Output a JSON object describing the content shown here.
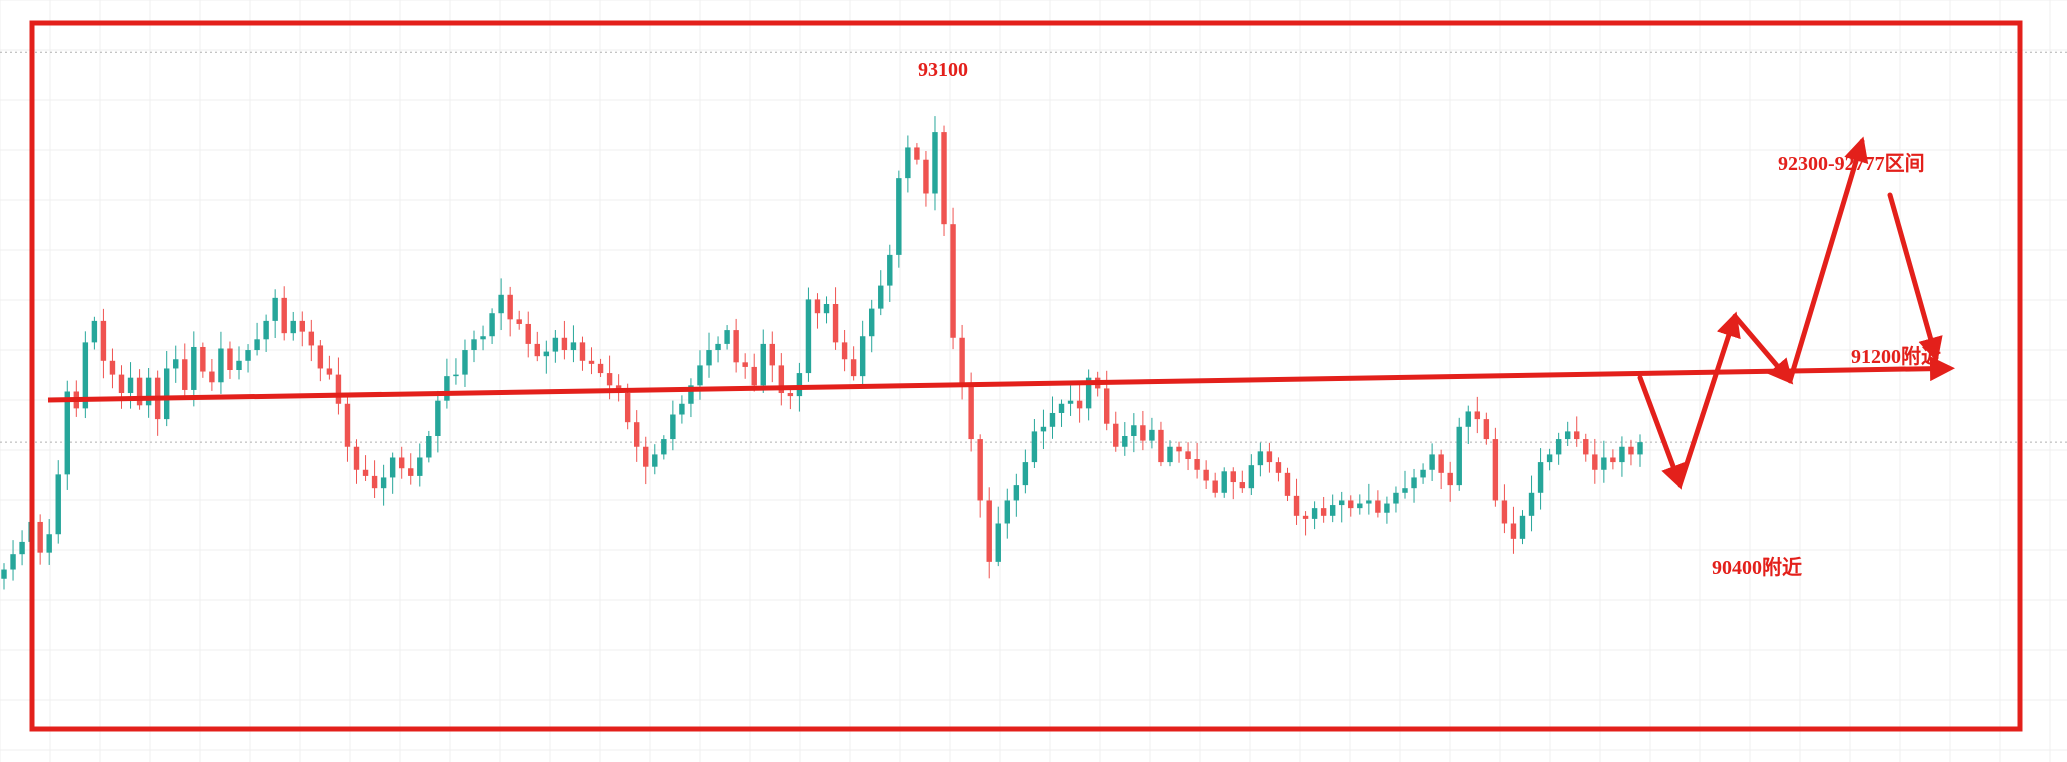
{
  "chart_data": {
    "type": "candlestick",
    "title": "",
    "xlabel": "",
    "ylabel": "",
    "ylim": [
      89000,
      93300
    ],
    "grid": true,
    "colors": {
      "up": "#26a69a",
      "down": "#ef5350",
      "annotation": "#e3201b",
      "dotted_line": "#b0b0b0"
    },
    "dotted_levels": [
      93220,
      90680
    ],
    "annotations": [
      {
        "text": "93100",
        "price": 93100
      },
      {
        "text": "92300-92777区间",
        "price_range": [
          92300,
          92777
        ]
      },
      {
        "text": "91200附近",
        "price": 91200
      },
      {
        "text": "90400附近",
        "price": 90400
      }
    ],
    "horizontal_level": 91200,
    "projection_path": [
      91100,
      90400,
      91500,
      91080,
      92640,
      91230
    ],
    "closes": [
      89850,
      89950,
      90030,
      90160,
      89960,
      90080,
      90470,
      91010,
      90900,
      91330,
      91470,
      91210,
      91120,
      91000,
      91100,
      90920,
      91100,
      90830,
      91160,
      91220,
      91020,
      91300,
      91140,
      91070,
      91290,
      91150,
      91210,
      91280,
      91350,
      91470,
      91620,
      91390,
      91470,
      91400,
      91310,
      91160,
      91120,
      90930,
      90650,
      90500,
      90460,
      90380,
      90450,
      90580,
      90510,
      90460,
      90580,
      90720,
      90950,
      91110,
      91120,
      91280,
      91350,
      91370,
      91520,
      91640,
      91480,
      91450,
      91320,
      91240,
      91270,
      91360,
      91280,
      91330,
      91210,
      91190,
      91130,
      91050,
      91000,
      90810,
      90650,
      90520,
      90600,
      90700,
      90860,
      90930,
      91050,
      91180,
      91280,
      91320,
      91410,
      91200,
      91170,
      91050,
      91320,
      91180,
      91000,
      90980,
      91130,
      91610,
      91520,
      91580,
      91330,
      91220,
      91110,
      91370,
      91550,
      91700,
      91900,
      92400,
      92600,
      92520,
      92300,
      92700,
      92100,
      91360,
      91040,
      90700,
      90300,
      89900,
      90150,
      90300,
      90400,
      90550,
      90750,
      90780,
      90870,
      90930,
      90950,
      90900,
      91100,
      91030,
      90800,
      90650,
      90720,
      90790,
      90690,
      90760,
      90550,
      90650,
      90620,
      90570,
      90500,
      90430,
      90350,
      90490,
      90420,
      90380,
      90530,
      90620,
      90550,
      90480,
      90330,
      90200,
      90180,
      90250,
      90200,
      90270,
      90300,
      90250,
      90280,
      90300,
      90220,
      90280,
      90350,
      90380,
      90450,
      90500,
      90600,
      90480,
      90400,
      90780,
      90880,
      90830,
      90700,
      90300,
      90150,
      90050,
      90200,
      90350,
      90550,
      90600,
      90700,
      90750,
      90700,
      90600,
      90500,
      90580,
      90550,
      90650,
      90600,
      90680
    ]
  }
}
